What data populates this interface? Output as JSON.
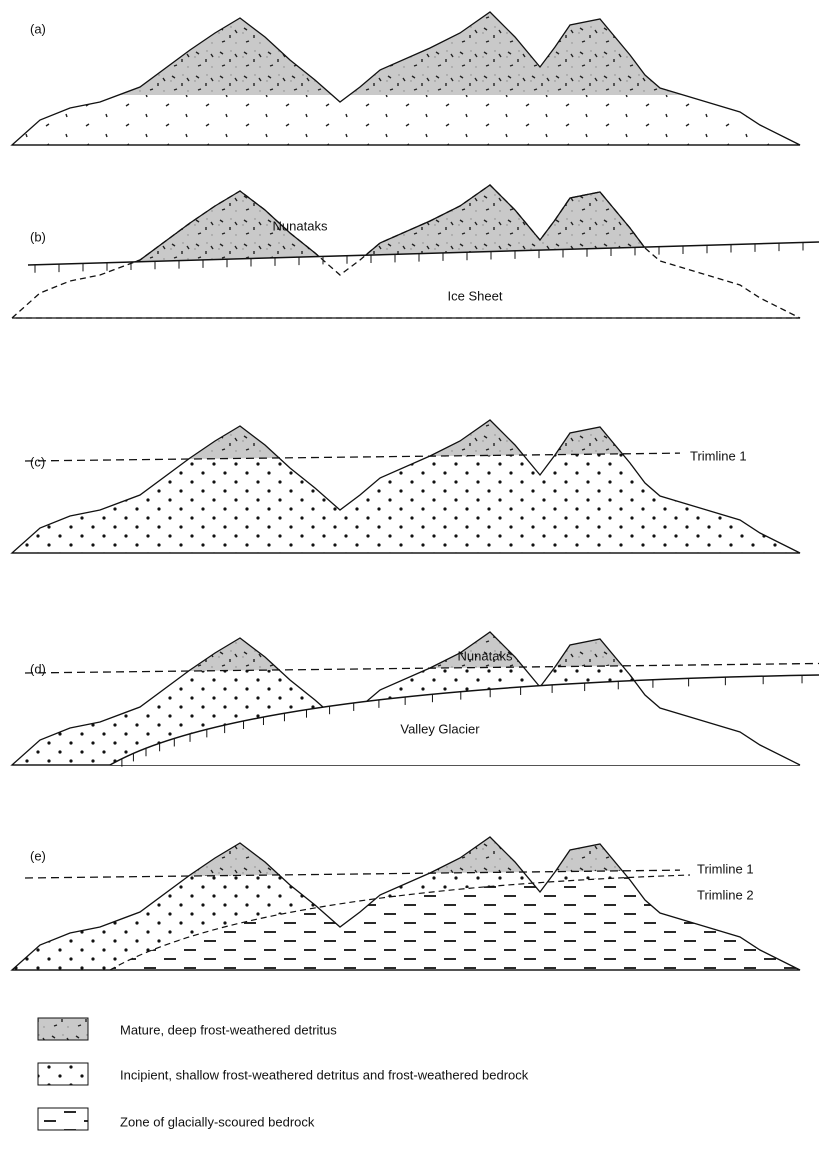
{
  "panels": [
    {
      "label": "(a)"
    },
    {
      "label": "(b)",
      "annotations": [
        "Nunataks",
        "Ice Sheet"
      ]
    },
    {
      "label": "(c)",
      "annotations": [
        "Trimline 1"
      ]
    },
    {
      "label": "(d)",
      "annotations": [
        "Nunataks",
        "Valley Glacier"
      ]
    },
    {
      "label": "(e)",
      "annotations": [
        "Trimline 1",
        "Trimline 2"
      ]
    }
  ],
  "legend": [
    {
      "label": "Mature, deep frost-weathered detritus"
    },
    {
      "label": "Incipient, shallow frost-weathered detritus and frost-weathered bedrock"
    },
    {
      "label": "Zone of glacially-scoured bedrock"
    }
  ]
}
